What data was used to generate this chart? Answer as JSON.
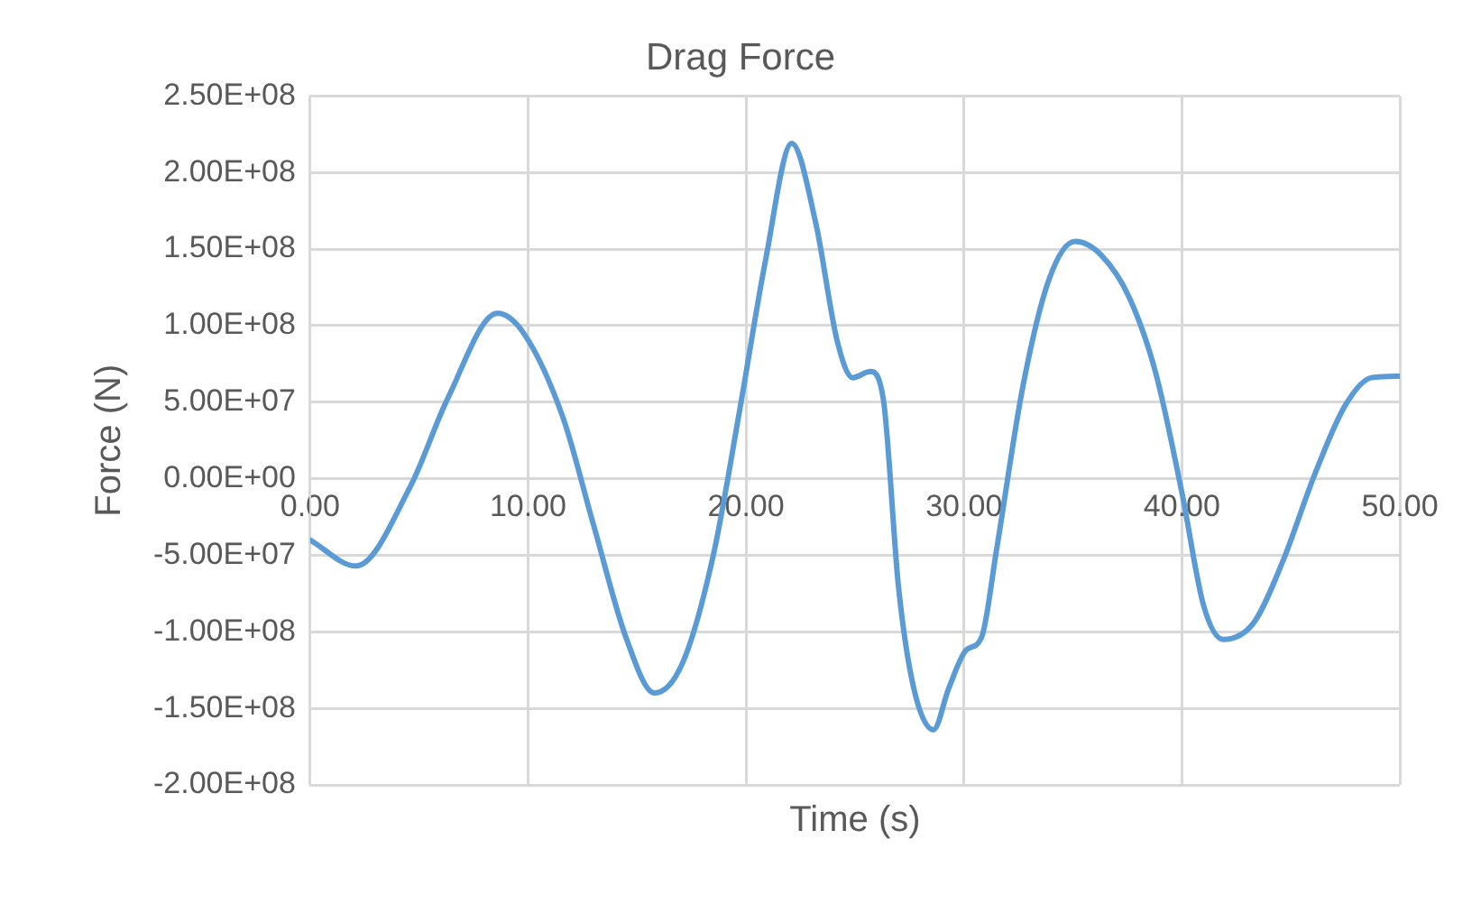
{
  "chart_data": {
    "type": "line",
    "title": "Drag Force",
    "xlabel": "Time (s)",
    "ylabel": "Force (N)",
    "xlim": [
      0,
      50
    ],
    "xticks": [
      {
        "value": 0,
        "label": "0.00"
      },
      {
        "value": 10,
        "label": "10.00"
      },
      {
        "value": 20,
        "label": "20.00"
      },
      {
        "value": 30,
        "label": "30.00"
      },
      {
        "value": 40,
        "label": "40.00"
      },
      {
        "value": 50,
        "label": "50.00"
      }
    ],
    "ylim": [
      -200000000,
      250000000
    ],
    "yticks": [
      {
        "value": -200000000,
        "label": "-2.00E+08"
      },
      {
        "value": -150000000,
        "label": "-1.50E+08"
      },
      {
        "value": -100000000,
        "label": "-1.00E+08"
      },
      {
        "value": -50000000,
        "label": "-5.00E+07"
      },
      {
        "value": 0,
        "label": "0.00E+00"
      },
      {
        "value": 50000000,
        "label": "5.00E+07"
      },
      {
        "value": 100000000,
        "label": "1.00E+08"
      },
      {
        "value": 150000000,
        "label": "1.50E+08"
      },
      {
        "value": 200000000,
        "label": "2.00E+08"
      },
      {
        "value": 250000000,
        "label": "2.50E+08"
      }
    ],
    "grid": true,
    "legend": false,
    "marker": "none",
    "line_style": "solid",
    "series": [
      {
        "color": "#5b9bd5",
        "x": [
          0,
          2.1,
          4.6,
          6.3,
          8.6,
          9.8,
          11.6,
          13.0,
          14.5,
          15.8,
          17.1,
          18.5,
          19.7,
          20.9,
          22.1,
          23.2,
          24.2,
          24.9,
          25.7,
          26.3,
          27.0,
          27.7,
          28.6,
          29.3,
          30.1,
          30.8,
          31.5,
          32.7,
          33.9,
          35.1,
          36.3,
          37.6,
          38.8,
          40.0,
          41.0,
          41.9,
          43.3,
          44.6,
          46.1,
          47.5,
          48.7,
          50.0
        ],
        "values": [
          -40000000,
          -57000000,
          -5000000,
          52000000,
          108000000,
          95000000,
          40000000,
          -30000000,
          -104000000,
          -140000000,
          -120000000,
          -50000000,
          44000000,
          143000000,
          219000000,
          167000000,
          89000000,
          66000000,
          70000000,
          52000000,
          -71000000,
          -137000000,
          -164000000,
          -137000000,
          -112000000,
          -104000000,
          -46000000,
          60000000,
          130000000,
          155000000,
          146000000,
          118000000,
          69000000,
          -9000000,
          -83000000,
          -105000000,
          -94000000,
          -55000000,
          3000000,
          48000000,
          66000000,
          67000000
        ]
      }
    ]
  }
}
